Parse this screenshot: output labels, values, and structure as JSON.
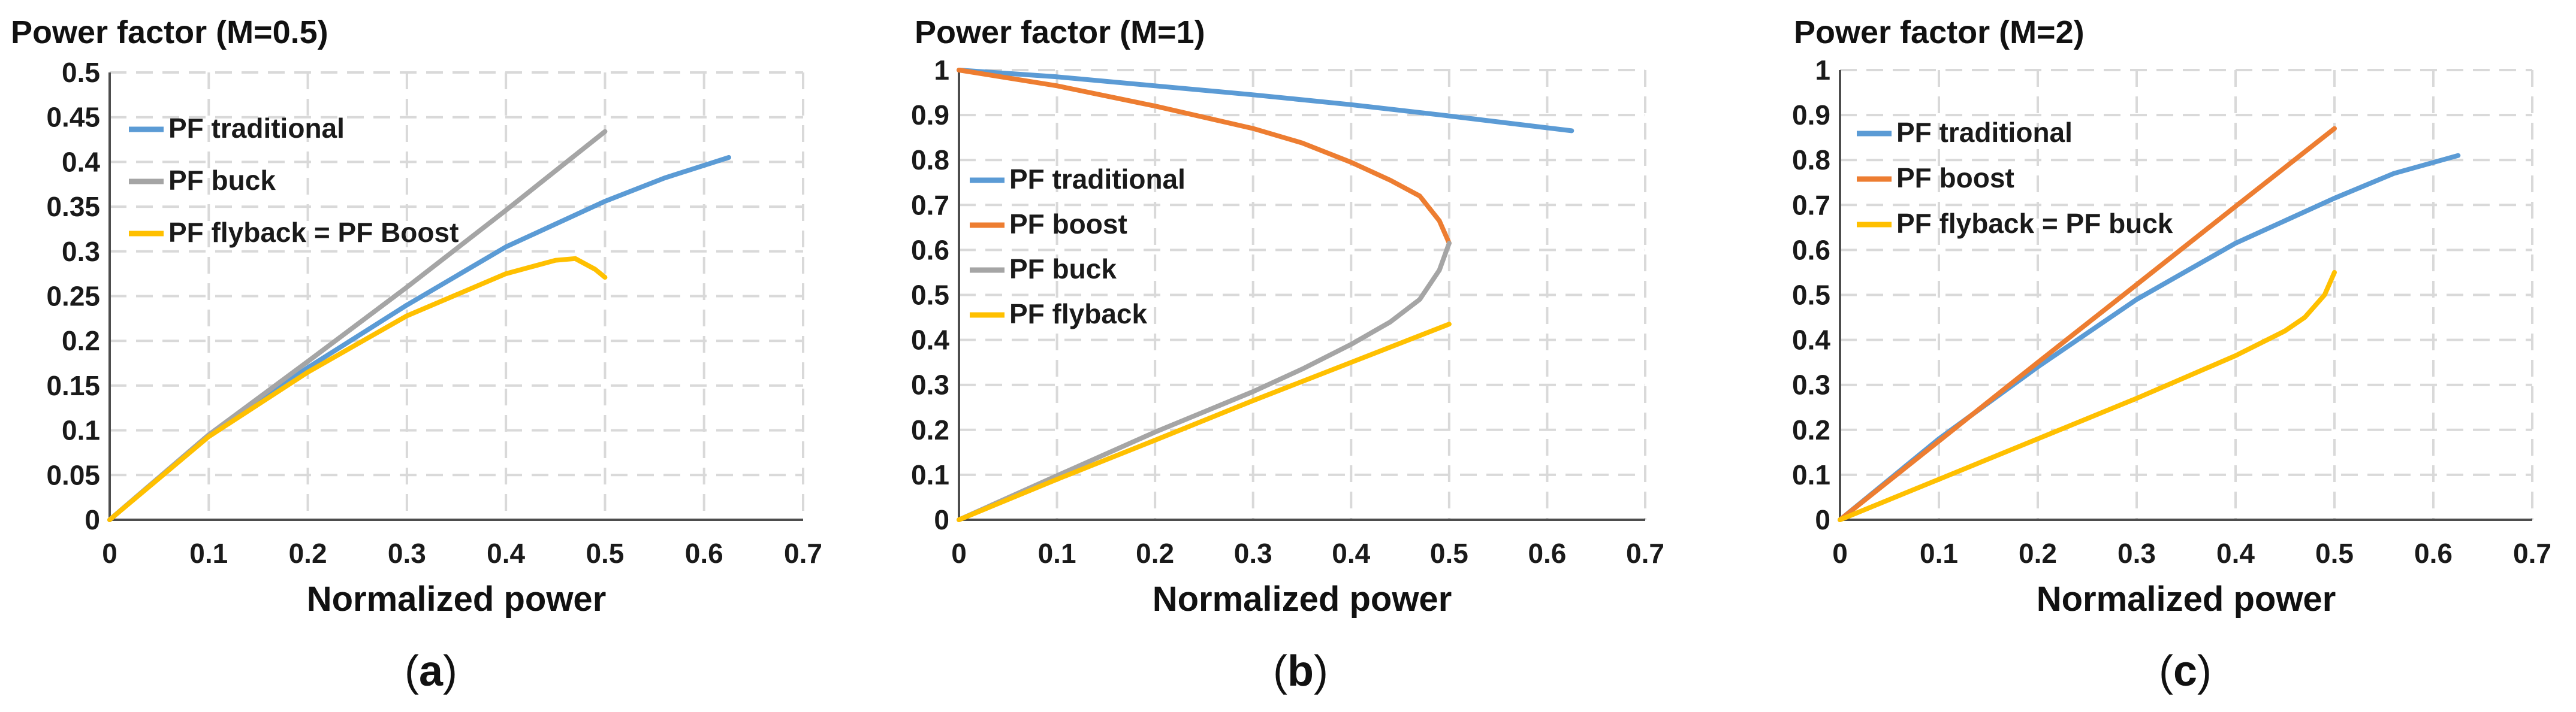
{
  "chart_data": [
    {
      "type": "line",
      "title": "Power factor (M=0.5)",
      "xlabel": "Normalized power",
      "ylabel": "",
      "xlim": [
        0,
        0.7
      ],
      "ylim": [
        0,
        0.5
      ],
      "x_ticks": [
        "0",
        "0.1",
        "0.2",
        "0.3",
        "0.4",
        "0.5",
        "0.6",
        "0.7"
      ],
      "y_ticks": [
        "0",
        "0.05",
        "0.1",
        "0.15",
        "0.2",
        "0.25",
        "0.3",
        "0.35",
        "0.4",
        "0.45",
        "0.5"
      ],
      "grid": true,
      "legend_position": "top-left",
      "caption": "a",
      "series": [
        {
          "name": "PF traditional",
          "color": "#5b9bd5",
          "x": [
            0,
            0.1,
            0.2,
            0.3,
            0.4,
            0.5,
            0.56,
            0.625
          ],
          "y": [
            0,
            0.095,
            0.17,
            0.24,
            0.305,
            0.356,
            0.382,
            0.405
          ]
        },
        {
          "name": "PF buck",
          "color": "#a5a5a5",
          "x": [
            0,
            0.1,
            0.2,
            0.3,
            0.4,
            0.5
          ],
          "y": [
            0,
            0.095,
            0.177,
            0.26,
            0.346,
            0.434
          ]
        },
        {
          "name": "PF flyback = PF Boost",
          "color": "#ffc000",
          "x": [
            0,
            0.1,
            0.2,
            0.3,
            0.4,
            0.45,
            0.47,
            0.49,
            0.5
          ],
          "y": [
            0,
            0.093,
            0.165,
            0.228,
            0.275,
            0.29,
            0.292,
            0.28,
            0.271
          ]
        }
      ]
    },
    {
      "type": "line",
      "title": "Power factor (M=1)",
      "xlabel": "Normalized power",
      "ylabel": "",
      "xlim": [
        0,
        0.7
      ],
      "ylim": [
        0,
        1
      ],
      "x_ticks": [
        "0",
        "0.1",
        "0.2",
        "0.3",
        "0.4",
        "0.5",
        "0.6",
        "0.7"
      ],
      "y_ticks": [
        "0",
        "0.1",
        "0.2",
        "0.3",
        "0.4",
        "0.5",
        "0.6",
        "0.7",
        "0.8",
        "0.9",
        "1"
      ],
      "grid": true,
      "legend_position": "center-left",
      "caption": "b",
      "series": [
        {
          "name": "PF traditional",
          "color": "#5b9bd5",
          "x": [
            0,
            0.1,
            0.2,
            0.3,
            0.4,
            0.5,
            0.625
          ],
          "y": [
            1,
            0.985,
            0.965,
            0.945,
            0.923,
            0.898,
            0.865
          ]
        },
        {
          "name": "PF boost",
          "color": "#ed7d31",
          "x": [
            0,
            0.1,
            0.2,
            0.3,
            0.35,
            0.4,
            0.44,
            0.47,
            0.49,
            0.5
          ],
          "y": [
            1,
            0.965,
            0.92,
            0.87,
            0.838,
            0.795,
            0.755,
            0.72,
            0.665,
            0.615
          ]
        },
        {
          "name": "PF buck",
          "color": "#a5a5a5",
          "x": [
            0,
            0.1,
            0.2,
            0.3,
            0.35,
            0.4,
            0.44,
            0.47,
            0.49,
            0.5
          ],
          "y": [
            0,
            0.098,
            0.195,
            0.285,
            0.335,
            0.39,
            0.44,
            0.49,
            0.555,
            0.615
          ]
        },
        {
          "name": "PF flyback",
          "color": "#ffc000",
          "x": [
            0,
            0.1,
            0.2,
            0.3,
            0.4,
            0.5
          ],
          "y": [
            0,
            0.09,
            0.177,
            0.265,
            0.35,
            0.435
          ]
        }
      ]
    },
    {
      "type": "line",
      "title": "Power factor (M=2)",
      "xlabel": "Normalized power",
      "ylabel": "",
      "xlim": [
        0,
        0.7
      ],
      "ylim": [
        0,
        1
      ],
      "x_ticks": [
        "0",
        "0.1",
        "0.2",
        "0.3",
        "0.4",
        "0.5",
        "0.6",
        "0.7"
      ],
      "y_ticks": [
        "0",
        "0.1",
        "0.2",
        "0.3",
        "0.4",
        "0.5",
        "0.6",
        "0.7",
        "0.8",
        "0.9",
        "1"
      ],
      "grid": true,
      "legend_position": "top-left",
      "caption": "c",
      "series": [
        {
          "name": "PF traditional",
          "color": "#5b9bd5",
          "x": [
            0,
            0.1,
            0.2,
            0.3,
            0.4,
            0.5,
            0.56,
            0.625
          ],
          "y": [
            0,
            0.18,
            0.34,
            0.49,
            0.615,
            0.715,
            0.77,
            0.81
          ]
        },
        {
          "name": "PF boost",
          "color": "#ed7d31",
          "x": [
            0,
            0.1,
            0.2,
            0.3,
            0.4,
            0.5
          ],
          "y": [
            0,
            0.175,
            0.35,
            0.523,
            0.697,
            0.87
          ]
        },
        {
          "name": "PF flyback = PF buck",
          "color": "#ffc000",
          "x": [
            0,
            0.1,
            0.2,
            0.3,
            0.4,
            0.45,
            0.47,
            0.49,
            0.5
          ],
          "y": [
            0,
            0.09,
            0.18,
            0.27,
            0.365,
            0.42,
            0.45,
            0.5,
            0.55
          ]
        }
      ]
    }
  ]
}
